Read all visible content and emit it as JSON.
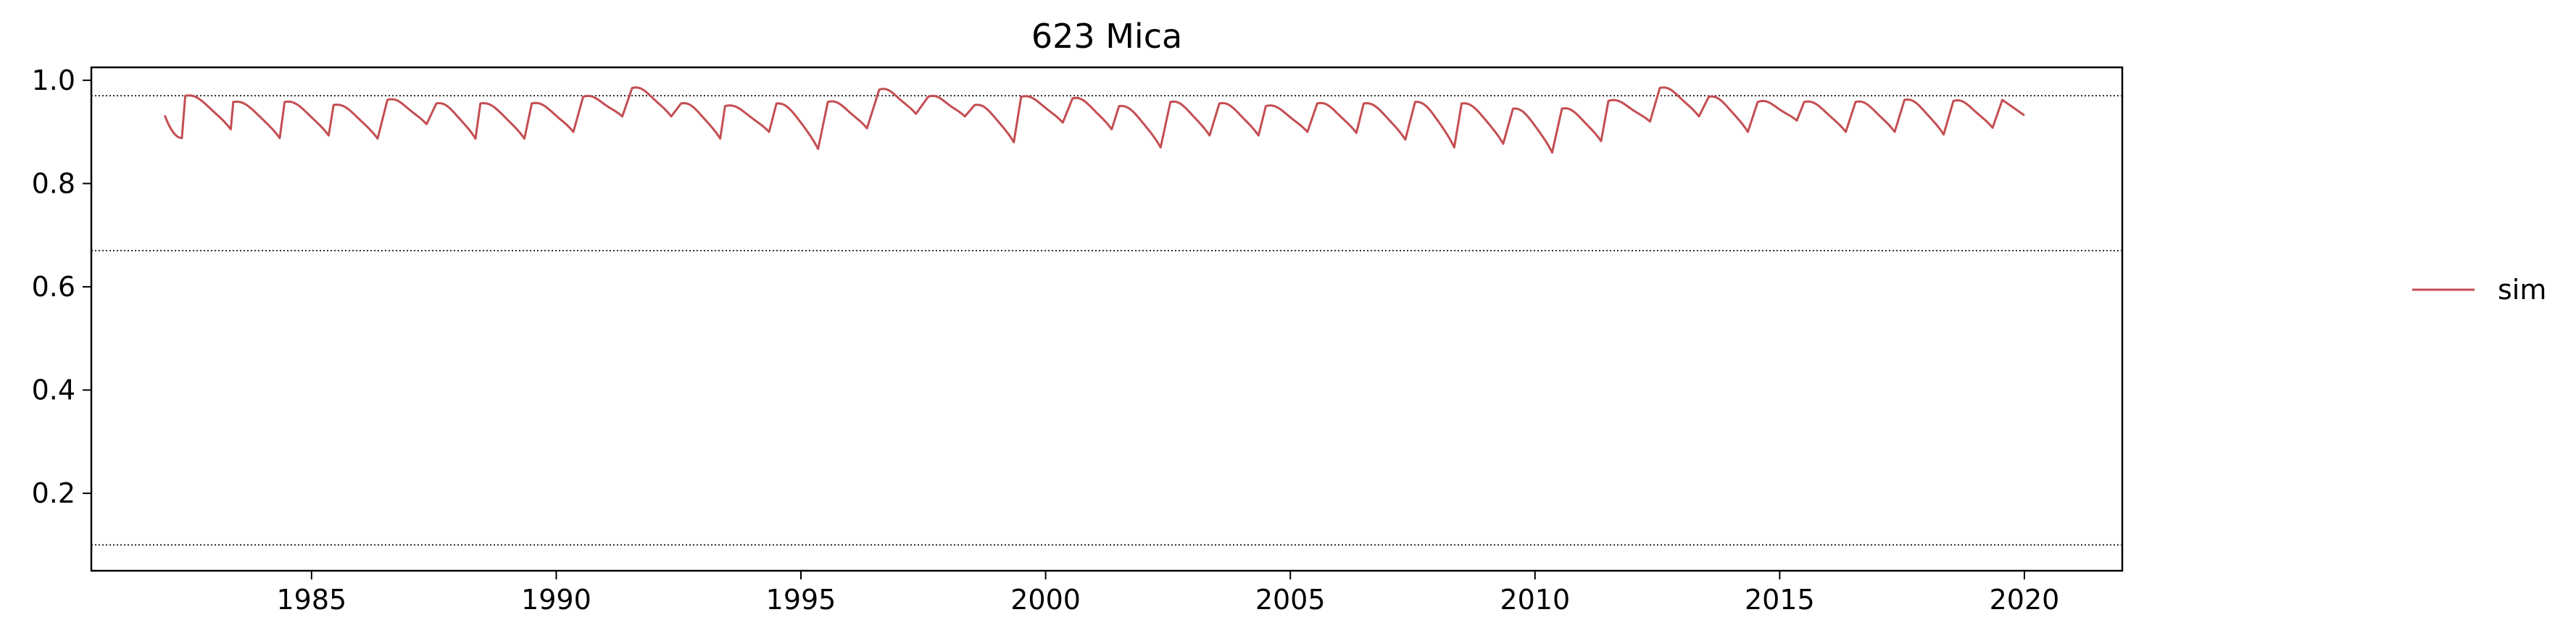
{
  "chart_data": {
    "type": "line",
    "title": "623  Mica",
    "xlabel": "",
    "ylabel": "",
    "xlim": [
      1980.5,
      2022.0
    ],
    "ylim": [
      0.05,
      1.025
    ],
    "x_ticks": [
      1985,
      1990,
      1995,
      2000,
      2005,
      2010,
      2015,
      2020
    ],
    "y_ticks": [
      0.2,
      0.4,
      0.6,
      0.8,
      1.0
    ],
    "x_tick_labels": [
      "1985",
      "1990",
      "1995",
      "2000",
      "2005",
      "2010",
      "2015",
      "2020"
    ],
    "y_tick_labels": [
      "0.2",
      "0.4",
      "0.6",
      "0.8",
      "1.0"
    ],
    "grid": false,
    "legend_position": "right",
    "reference_lines": [
      {
        "y": 0.97,
        "style": "dotted",
        "color": "#000000"
      },
      {
        "y": 0.67,
        "style": "dotted",
        "color": "#000000"
      },
      {
        "y": 0.1,
        "style": "dotted",
        "color": "#000000"
      }
    ],
    "series": [
      {
        "name": "sim",
        "color": "#c44e52",
        "x_start": 1982.0,
        "x_end": 2020.0,
        "pattern_description": "annual cycle: sharp rise to peak early/mid year then gradual decline to a trough before the next rise",
        "annual": [
          {
            "year": 1982,
            "peak": 0.97,
            "trough": 0.888,
            "peak_pos": 0.42
          },
          {
            "year": 1983,
            "peak": 0.958,
            "trough": 0.905,
            "peak_pos": 0.4
          },
          {
            "year": 1984,
            "peak": 0.958,
            "trough": 0.888,
            "peak_pos": 0.45
          },
          {
            "year": 1985,
            "peak": 0.952,
            "trough": 0.893,
            "peak_pos": 0.45
          },
          {
            "year": 1986,
            "peak": 0.962,
            "trough": 0.887,
            "peak_pos": 0.55
          },
          {
            "year": 1987,
            "peak": 0.955,
            "trough": 0.915,
            "peak_pos": 0.55
          },
          {
            "year": 1988,
            "peak": 0.955,
            "trough": 0.887,
            "peak_pos": 0.45
          },
          {
            "year": 1989,
            "peak": 0.955,
            "trough": 0.887,
            "peak_pos": 0.5
          },
          {
            "year": 1990,
            "peak": 0.968,
            "trough": 0.9,
            "peak_pos": 0.55
          },
          {
            "year": 1991,
            "peak": 0.985,
            "trough": 0.93,
            "peak_pos": 0.55
          },
          {
            "year": 1992,
            "peak": 0.955,
            "trough": 0.93,
            "peak_pos": 0.55
          },
          {
            "year": 1993,
            "peak": 0.95,
            "trough": 0.887,
            "peak_pos": 0.45
          },
          {
            "year": 1994,
            "peak": 0.955,
            "trough": 0.9,
            "peak_pos": 0.5
          },
          {
            "year": 1995,
            "peak": 0.958,
            "trough": 0.867,
            "peak_pos": 0.55
          },
          {
            "year": 1996,
            "peak": 0.982,
            "trough": 0.907,
            "peak_pos": 0.6
          },
          {
            "year": 1997,
            "peak": 0.968,
            "trough": 0.935,
            "peak_pos": 0.6
          },
          {
            "year": 1998,
            "peak": 0.952,
            "trough": 0.93,
            "peak_pos": 0.55
          },
          {
            "year": 1999,
            "peak": 0.968,
            "trough": 0.88,
            "peak_pos": 0.5
          },
          {
            "year": 2000,
            "peak": 0.965,
            "trough": 0.918,
            "peak_pos": 0.55
          },
          {
            "year": 2001,
            "peak": 0.95,
            "trough": 0.905,
            "peak_pos": 0.5
          },
          {
            "year": 2002,
            "peak": 0.958,
            "trough": 0.87,
            "peak_pos": 0.55
          },
          {
            "year": 2003,
            "peak": 0.955,
            "trough": 0.893,
            "peak_pos": 0.55
          },
          {
            "year": 2004,
            "peak": 0.95,
            "trough": 0.893,
            "peak_pos": 0.5
          },
          {
            "year": 2005,
            "peak": 0.955,
            "trough": 0.9,
            "peak_pos": 0.55
          },
          {
            "year": 2006,
            "peak": 0.955,
            "trough": 0.898,
            "peak_pos": 0.5
          },
          {
            "year": 2007,
            "peak": 0.958,
            "trough": 0.885,
            "peak_pos": 0.55
          },
          {
            "year": 2008,
            "peak": 0.955,
            "trough": 0.87,
            "peak_pos": 0.5
          },
          {
            "year": 2009,
            "peak": 0.945,
            "trough": 0.877,
            "peak_pos": 0.55
          },
          {
            "year": 2010,
            "peak": 0.945,
            "trough": 0.86,
            "peak_pos": 0.55
          },
          {
            "year": 2011,
            "peak": 0.96,
            "trough": 0.882,
            "peak_pos": 0.5
          },
          {
            "year": 2012,
            "peak": 0.985,
            "trough": 0.92,
            "peak_pos": 0.55
          },
          {
            "year": 2013,
            "peak": 0.968,
            "trough": 0.93,
            "peak_pos": 0.55
          },
          {
            "year": 2014,
            "peak": 0.958,
            "trough": 0.9,
            "peak_pos": 0.55
          },
          {
            "year": 2015,
            "peak": 0.958,
            "trough": 0.922,
            "peak_pos": 0.5
          },
          {
            "year": 2016,
            "peak": 0.958,
            "trough": 0.9,
            "peak_pos": 0.55
          },
          {
            "year": 2017,
            "peak": 0.962,
            "trough": 0.9,
            "peak_pos": 0.55
          },
          {
            "year": 2018,
            "peak": 0.96,
            "trough": 0.895,
            "peak_pos": 0.55
          },
          {
            "year": 2019,
            "peak": 0.962,
            "trough": 0.908,
            "peak_pos": 0.55
          }
        ],
        "last_value": 0.932
      }
    ]
  }
}
